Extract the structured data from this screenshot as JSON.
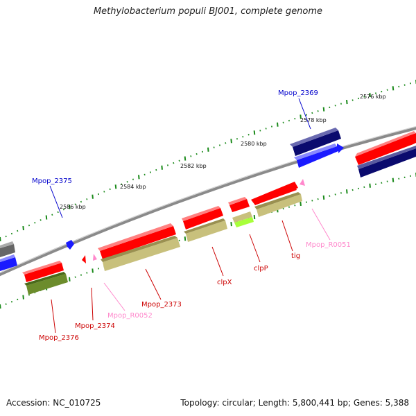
{
  "title": "Methylobacterium populi BJ001, complete genome",
  "footer": {
    "accession": "Accession: NC_010725",
    "topology": "Topology: circular; Length: 5,800,441 bp; Genes: 5,388"
  },
  "colors": {
    "backbone": "#8a8a8a",
    "tick_minor": "#1a8a1a",
    "cds_red": "#ff0000",
    "cds_blue": "#1a1aff",
    "cds_navy": "#0a0a6e",
    "cds_olive": "#c8c07c",
    "cds_darkolive": "#6c8c2c",
    "cds_lime": "#a8ff3a",
    "cds_gray": "#666666",
    "trna_pink": "#ff88cc",
    "label_red": "#cc0000",
    "label_blue": "#0000cc",
    "label_pink": "#ff88cc"
  },
  "scale_labels": [
    "2576 kbp",
    "2578 kbp",
    "2580 kbp",
    "2582 kbp",
    "2584 kbp",
    "2586 kbp"
  ],
  "gene_labels": {
    "top": [
      "Mpop_2369",
      "Mpop_2375"
    ],
    "bottom": [
      "Mpop_R0051",
      "tig",
      "clpP",
      "clpX",
      "Mpop_2373",
      "Mpop_R0052",
      "Mpop_2374",
      "Mpop_2376"
    ]
  }
}
